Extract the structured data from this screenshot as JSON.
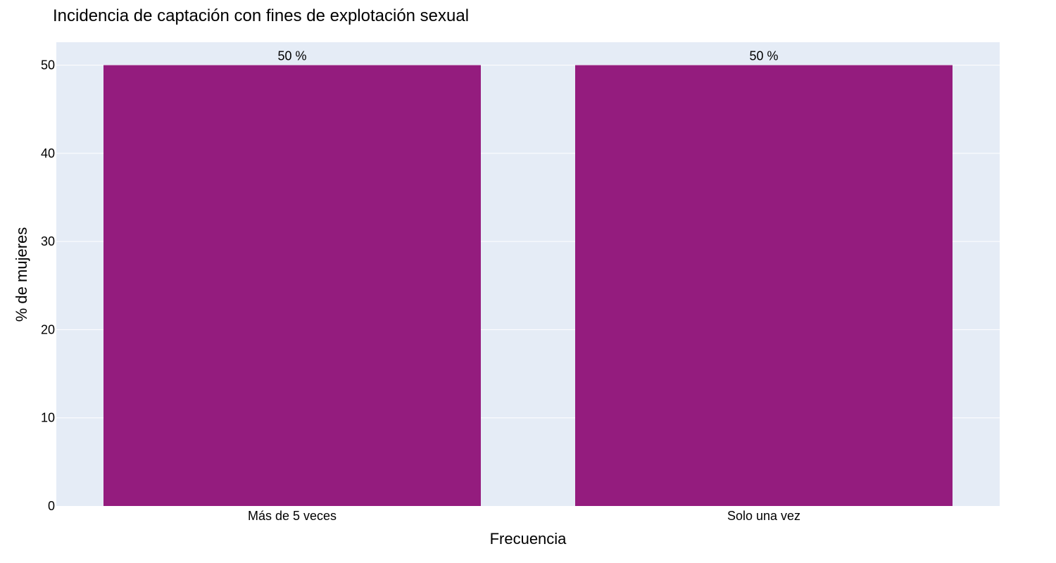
{
  "chart_data": {
    "type": "bar",
    "title": "Incidencia de captación con fines de explotación sexual",
    "xlabel": "Frecuencia",
    "ylabel": "% de mujeres",
    "categories": [
      "Más de 5 veces",
      "Solo una vez"
    ],
    "values": [
      50,
      50
    ],
    "data_labels": [
      "50 %",
      "50 %"
    ],
    "ylim": [
      0,
      52.6
    ],
    "yticks": [
      0,
      10,
      20,
      30,
      40,
      50
    ],
    "grid": true,
    "legend": "none",
    "colors": {
      "bar": "#941c7e",
      "plot_background": "#e5ecf6",
      "grid": "#ffffff"
    }
  }
}
